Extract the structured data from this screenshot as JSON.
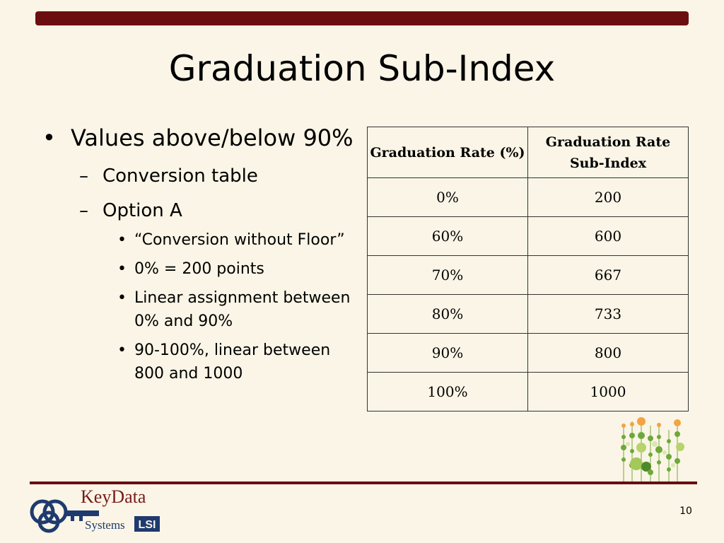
{
  "slide": {
    "title": "Graduation Sub-Index",
    "page_number": "10"
  },
  "bullets": {
    "l1": {
      "marker": "•",
      "text": "Values above/below 90%"
    },
    "l2": [
      {
        "marker": "–",
        "text": "Conversion table"
      },
      {
        "marker": "–",
        "text": "Option A"
      }
    ],
    "l3": [
      {
        "marker": "•",
        "text": "“Conversion without Floor”"
      },
      {
        "marker": "•",
        "text": "0% = 200 points"
      },
      {
        "marker": "•",
        "text": "Linear assignment between 0% and 90%"
      },
      {
        "marker": "•",
        "text": "90-100%, linear between 800 and 1000"
      }
    ]
  },
  "table": {
    "headers": [
      "Graduation Rate (%)",
      "Graduation Rate Sub-Index"
    ],
    "rows": [
      [
        "0%",
        "200"
      ],
      [
        "60%",
        "600"
      ],
      [
        "70%",
        "667"
      ],
      [
        "80%",
        "733"
      ],
      [
        "90%",
        "800"
      ],
      [
        "100%",
        "1000"
      ]
    ]
  },
  "logo": {
    "line1": "KeyData",
    "line2": "Systems",
    "mark": "LSI"
  },
  "colors": {
    "background": "#faf5e6",
    "accent": "#6b0e10",
    "logo_blue": "#1f3a6e"
  }
}
